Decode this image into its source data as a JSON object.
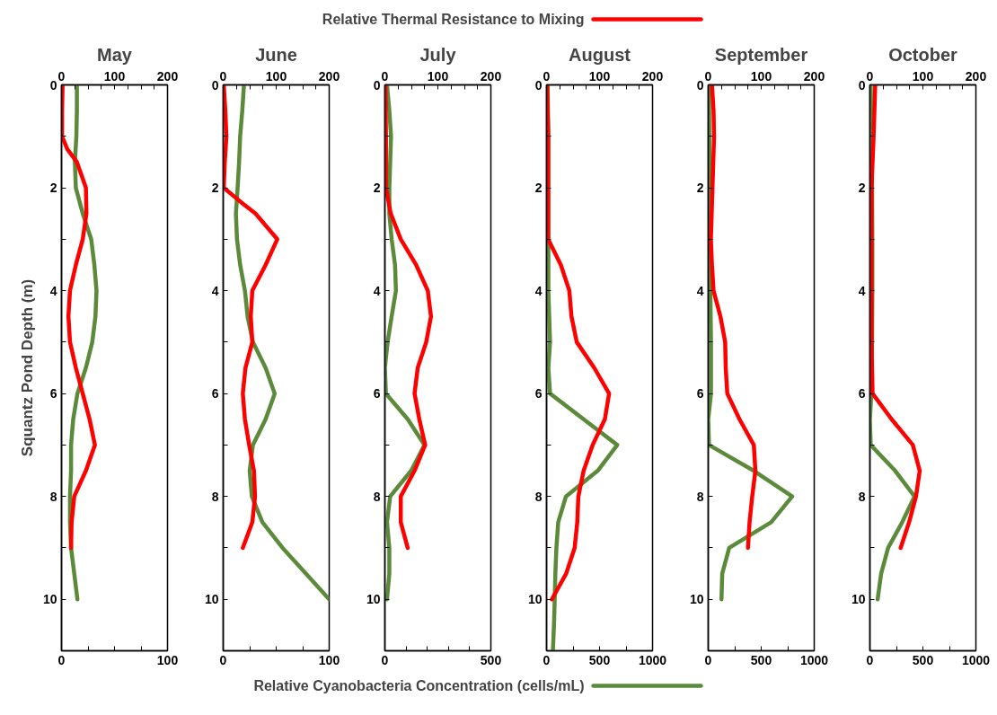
{
  "chart_data": [
    {
      "type": "line",
      "title": "May",
      "ylabel": "Squantz Pond Depth (m)",
      "orientation": "horizontal",
      "legend": "top",
      "line_style": "solid",
      "grid": false,
      "ylim": [
        11,
        0
      ],
      "yticks": [
        0,
        {
          "value": 1,
          "label": null
        },
        2,
        {
          "value": 3,
          "label": null
        },
        4,
        {
          "value": 5,
          "label": null
        },
        6,
        {
          "value": 7,
          "label": null
        },
        8,
        {
          "value": 9,
          "label": null
        },
        10,
        {
          "value": 11,
          "label": null
        }
      ],
      "xlim": [
        0,
        100
      ],
      "xticks": [
        0,
        {
          "value": 25,
          "label": null
        },
        {
          "value": 50,
          "label": null
        },
        {
          "value": 75,
          "label": null
        },
        100
      ],
      "x2lim": [
        0,
        200
      ],
      "x2ticks": [
        0,
        {
          "value": 25,
          "label": null
        },
        {
          "value": 50,
          "label": null
        },
        {
          "value": 75,
          "label": null
        },
        100,
        {
          "value": 125,
          "label": null
        },
        {
          "value": 150,
          "label": null
        },
        {
          "value": 175,
          "label": null
        },
        200
      ],
      "series": [
        {
          "name": "Relative Thermal Resistance to Mixing",
          "color": "#ff0000",
          "axis": "x2",
          "x": [
            0,
            0.5,
            1,
            1.25,
            1.5,
            2,
            2.5,
            3,
            3.5,
            4,
            4.5,
            5,
            5.5,
            6,
            6.5,
            7,
            7.5,
            8,
            8.5,
            9
          ],
          "values": [
            2,
            1,
            1,
            11,
            29,
            46,
            47,
            40,
            27,
            16,
            13,
            16,
            27,
            40,
            53,
            63,
            46,
            24,
            19,
            18
          ]
        },
        {
          "name": "Relative Cyanobacteria Concentration (cells/mL)",
          "color": "#5b8a3a",
          "x": [
            0,
            0.5,
            1,
            1.5,
            2,
            2.5,
            3,
            3.5,
            4,
            4.5,
            5,
            5.5,
            6,
            6.5,
            7,
            7.5,
            8,
            8.5,
            9,
            9.5,
            10
          ],
          "values": [
            14.5,
            14.5,
            14,
            12.6,
            13.5,
            20,
            28,
            31,
            33,
            32,
            29,
            23,
            15,
            11,
            9,
            9,
            8,
            8,
            9,
            12,
            15
          ]
        }
      ]
    },
    {
      "type": "line",
      "title": "June",
      "orientation": "horizontal",
      "line_style": "solid",
      "grid": false,
      "ylim": [
        11,
        0
      ],
      "yticks": [
        0,
        {
          "value": 1,
          "label": null
        },
        2,
        {
          "value": 3,
          "label": null
        },
        4,
        {
          "value": 5,
          "label": null
        },
        6,
        {
          "value": 7,
          "label": null
        },
        8,
        {
          "value": 9,
          "label": null
        },
        10,
        {
          "value": 11,
          "label": null
        }
      ],
      "xlim": [
        0,
        100
      ],
      "xticks": [
        0,
        {
          "value": 25,
          "label": null
        },
        {
          "value": 50,
          "label": null
        },
        {
          "value": 75,
          "label": null
        },
        100
      ],
      "x2lim": [
        0,
        200
      ],
      "x2ticks": [
        0,
        {
          "value": 25,
          "label": null
        },
        {
          "value": 50,
          "label": null
        },
        {
          "value": 75,
          "label": null
        },
        100,
        {
          "value": 125,
          "label": null
        },
        {
          "value": 150,
          "label": null
        },
        {
          "value": 175,
          "label": null
        },
        200
      ],
      "series": [
        {
          "color": "#ff0000",
          "axis": "x2",
          "x": [
            0,
            0.5,
            1,
            1.5,
            2,
            2.3,
            2.5,
            3,
            3.5,
            4,
            4.5,
            5,
            5.5,
            6,
            6.5,
            7,
            7.5,
            8,
            8.5,
            9
          ],
          "values": [
            1,
            4,
            6,
            3,
            1,
            36,
            61,
            102,
            80,
            55,
            52,
            55,
            42,
            37,
            41,
            49,
            58,
            60,
            55,
            37
          ]
        },
        {
          "color": "#5b8a3a",
          "x": [
            0,
            0.5,
            1,
            1.5,
            2,
            2.5,
            3,
            3.5,
            4,
            4.5,
            5,
            5.5,
            6,
            6.5,
            7,
            7.5,
            8,
            8.5,
            9,
            9.5,
            10
          ],
          "values": [
            19.6,
            18,
            16,
            15,
            13.6,
            12,
            13,
            16,
            20.5,
            23,
            28,
            40,
            48.6,
            40,
            28,
            25,
            27,
            37,
            56,
            78,
            100
          ]
        }
      ]
    },
    {
      "type": "line",
      "title": "July",
      "orientation": "horizontal",
      "line_style": "solid",
      "grid": false,
      "ylim": [
        11,
        0
      ],
      "yticks": [
        0,
        {
          "value": 1,
          "label": null
        },
        2,
        {
          "value": 3,
          "label": null
        },
        4,
        {
          "value": 5,
          "label": null
        },
        6,
        {
          "value": 7,
          "label": null
        },
        8,
        {
          "value": 9,
          "label": null
        },
        10,
        {
          "value": 11,
          "label": null
        }
      ],
      "xlim": [
        0,
        500
      ],
      "xticks": [
        0,
        {
          "value": 100,
          "label": null
        },
        {
          "value": 200,
          "label": null
        },
        {
          "value": 300,
          "label": null
        },
        {
          "value": 400,
          "label": null
        },
        500
      ],
      "x2lim": [
        0,
        200
      ],
      "x2ticks": [
        0,
        {
          "value": 25,
          "label": null
        },
        {
          "value": 50,
          "label": null
        },
        {
          "value": 75,
          "label": null
        },
        100,
        {
          "value": 125,
          "label": null
        },
        {
          "value": 150,
          "label": null
        },
        {
          "value": 175,
          "label": null
        },
        200
      ],
      "series": [
        {
          "color": "#ff0000",
          "axis": "x2",
          "x": [
            0,
            1,
            2,
            2.5,
            3,
            3.5,
            4,
            4.5,
            5,
            5.5,
            6,
            6.5,
            7,
            7.5,
            8,
            8.5,
            9
          ],
          "values": [
            1,
            2,
            2,
            11,
            30,
            59,
            81,
            87,
            78,
            62,
            56,
            65,
            76,
            56,
            30,
            30,
            43
          ]
        },
        {
          "color": "#5b8a3a",
          "x": [
            0,
            0.5,
            1,
            1.5,
            2,
            2.5,
            3,
            3.5,
            4,
            4.5,
            5,
            5.5,
            6,
            6.5,
            7,
            7.5,
            8,
            8.5,
            9,
            9.5,
            10
          ],
          "values": [
            10,
            21,
            29,
            25,
            21,
            21,
            32,
            48,
            52,
            32,
            13,
            0,
            5,
            108,
            187,
            124,
            25,
            10,
            21,
            21,
            10
          ]
        }
      ]
    },
    {
      "type": "line",
      "title": "August",
      "orientation": "horizontal",
      "line_style": "solid",
      "grid": false,
      "ylim": [
        11,
        0
      ],
      "yticks": [
        0,
        {
          "value": 1,
          "label": null
        },
        2,
        {
          "value": 3,
          "label": null
        },
        4,
        {
          "value": 5,
          "label": null
        },
        6,
        {
          "value": 7,
          "label": null
        },
        8,
        {
          "value": 9,
          "label": null
        },
        10,
        {
          "value": 11,
          "label": null
        }
      ],
      "xlim": [
        0,
        1000
      ],
      "xticks": [
        0,
        {
          "value": 250,
          "label": null
        },
        500,
        {
          "value": 750,
          "label": null
        },
        1000
      ],
      "x2lim": [
        0,
        200
      ],
      "x2ticks": [
        0,
        {
          "value": 25,
          "label": null
        },
        {
          "value": 50,
          "label": null
        },
        {
          "value": 75,
          "label": null
        },
        100,
        {
          "value": 125,
          "label": null
        },
        {
          "value": 150,
          "label": null
        },
        {
          "value": 175,
          "label": null
        },
        200
      ],
      "series": [
        {
          "color": "#ff0000",
          "axis": "x2",
          "x": [
            0,
            1,
            2,
            3,
            3.5,
            4,
            4.5,
            5,
            5.5,
            6,
            6.5,
            7,
            7.5,
            8,
            8.5,
            9,
            9.5,
            10
          ],
          "values": [
            1,
            3,
            3,
            3,
            27,
            43,
            47,
            57,
            90,
            118,
            110,
            87,
            70,
            60,
            58,
            53,
            37,
            10
          ]
        },
        {
          "color": "#5b8a3a",
          "x": [
            0,
            1,
            2,
            3,
            4,
            5,
            5.5,
            6,
            6.5,
            7,
            7.5,
            8,
            8.5,
            9,
            9.5,
            10,
            10.5,
            11
          ],
          "values": [
            10,
            17,
            17,
            17,
            17,
            33,
            17,
            33,
            350,
            667,
            483,
            183,
            110,
            93,
            83,
            77,
            70,
            60
          ]
        }
      ]
    },
    {
      "type": "line",
      "title": "September",
      "orientation": "horizontal",
      "line_style": "solid",
      "grid": false,
      "ylim": [
        11,
        0
      ],
      "yticks": [
        0,
        {
          "value": 1,
          "label": null
        },
        2,
        {
          "value": 3,
          "label": null
        },
        4,
        {
          "value": 5,
          "label": null
        },
        6,
        {
          "value": 7,
          "label": null
        },
        8,
        {
          "value": 9,
          "label": null
        },
        10,
        {
          "value": 11,
          "label": null
        }
      ],
      "xlim": [
        0,
        1000
      ],
      "xticks": [
        0,
        {
          "value": 250,
          "label": null
        },
        500,
        {
          "value": 750,
          "label": null
        },
        1000
      ],
      "x2lim": [
        0,
        200
      ],
      "x2ticks": [
        0,
        {
          "value": 25,
          "label": null
        },
        {
          "value": 50,
          "label": null
        },
        {
          "value": 75,
          "label": null
        },
        100,
        {
          "value": 125,
          "label": null
        },
        {
          "value": 150,
          "label": null
        },
        {
          "value": 175,
          "label": null
        },
        200
      ],
      "series": [
        {
          "color": "#ff0000",
          "axis": "x2",
          "x": [
            0,
            0.5,
            1,
            2,
            3,
            3.5,
            4,
            4.5,
            5,
            5.5,
            6,
            6.5,
            7,
            7.5,
            8,
            8.5,
            9
          ],
          "values": [
            7,
            10,
            11,
            8,
            5,
            7,
            10,
            23,
            32,
            33,
            36,
            59,
            86,
            89,
            83,
            78,
            75
          ]
        },
        {
          "color": "#5b8a3a",
          "x": [
            0,
            1,
            2,
            3,
            4,
            5,
            6,
            6.5,
            7,
            7.5,
            8,
            8.5,
            9,
            9.5,
            10
          ],
          "values": [
            7,
            10,
            13,
            17,
            20,
            26,
            26,
            0,
            7,
            429,
            792,
            594,
            198,
            132,
            125
          ]
        }
      ]
    },
    {
      "type": "line",
      "title": "October",
      "orientation": "horizontal",
      "line_style": "solid",
      "grid": false,
      "ylim": [
        11,
        0
      ],
      "yticks": [
        0,
        {
          "value": 1,
          "label": null
        },
        2,
        {
          "value": 3,
          "label": null
        },
        4,
        {
          "value": 5,
          "label": null
        },
        6,
        {
          "value": 7,
          "label": null
        },
        8,
        {
          "value": 9,
          "label": null
        },
        10,
        {
          "value": 11,
          "label": null
        }
      ],
      "xlim": [
        0,
        1000
      ],
      "xticks": [
        0,
        {
          "value": 250,
          "label": null
        },
        500,
        {
          "value": 750,
          "label": null
        },
        1000
      ],
      "x2lim": [
        0,
        200
      ],
      "x2ticks": [
        0,
        {
          "value": 25,
          "label": null
        },
        {
          "value": 50,
          "label": null
        },
        {
          "value": 75,
          "label": null
        },
        100,
        {
          "value": 125,
          "label": null
        },
        {
          "value": 150,
          "label": null
        },
        {
          "value": 175,
          "label": null
        },
        200
      ],
      "series": [
        {
          "color": "#ff0000",
          "axis": "x2",
          "x": [
            0,
            1,
            2,
            3,
            4,
            5,
            6,
            6.5,
            7,
            7.5,
            8,
            8.5,
            9
          ],
          "values": [
            10,
            7,
            3,
            3,
            3,
            3,
            5,
            41,
            81,
            94,
            87,
            74,
            58
          ]
        },
        {
          "color": "#5b8a3a",
          "x": [
            0,
            1,
            2,
            3,
            4,
            5,
            6,
            6.5,
            7,
            7.5,
            8,
            8.5,
            9,
            9.5,
            10
          ],
          "values": [
            7,
            13,
            20,
            23,
            23,
            20,
            13,
            0,
            7,
            238,
            421,
            305,
            172,
            106,
            73
          ]
        }
      ]
    }
  ]
}
